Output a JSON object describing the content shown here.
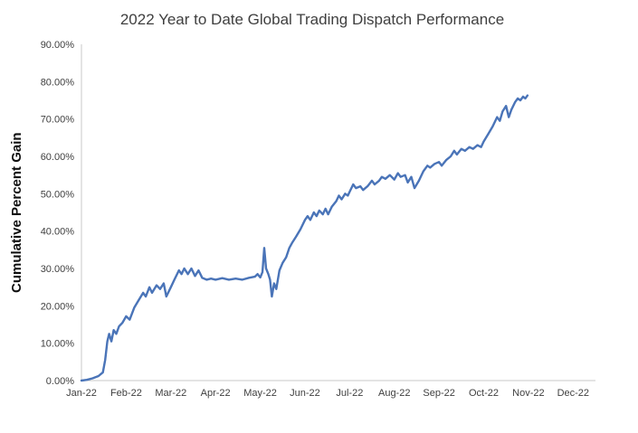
{
  "chart_data": {
    "type": "line",
    "title": "2022 Year to Date Global Trading Dispatch Performance",
    "xlabel": "",
    "ylabel": "Cumulative Percent Gain",
    "x_tick_labels": [
      "Jan-22",
      "Feb-22",
      "Mar-22",
      "Apr-22",
      "May-22",
      "Jun-22",
      "Jul-22",
      "Aug-22",
      "Sep-22",
      "Oct-22",
      "Nov-22",
      "Dec-22"
    ],
    "y_tick_labels": [
      "0.00%",
      "10.00%",
      "20.00%",
      "30.00%",
      "40.00%",
      "50.00%",
      "60.00%",
      "70.00%",
      "80.00%",
      "90.00%"
    ],
    "y_ticks": [
      0,
      10,
      20,
      30,
      40,
      50,
      60,
      70,
      80,
      90
    ],
    "ylim": [
      0,
      90
    ],
    "xlim": [
      0,
      11.5
    ],
    "x_unit": "months since Jan-22 tick (0 = Jan-22, 1 = Feb-22, ...)",
    "grid": false,
    "legend": "none",
    "line_color": "#4a74b8",
    "axis_color": "#c9c9c9",
    "text_color": "#404040",
    "series": [
      {
        "name": "Cumulative Percent Gain",
        "points": [
          [
            0,
            0
          ],
          [
            0.12,
            0.2
          ],
          [
            0.25,
            0.6
          ],
          [
            0.38,
            1.2
          ],
          [
            0.48,
            2.2
          ],
          [
            0.53,
            5.5
          ],
          [
            0.58,
            10.5
          ],
          [
            0.62,
            12.5
          ],
          [
            0.67,
            10.5
          ],
          [
            0.72,
            13.5
          ],
          [
            0.78,
            12.5
          ],
          [
            0.84,
            14.5
          ],
          [
            0.92,
            15.5
          ],
          [
            1.0,
            17.2
          ],
          [
            1.08,
            16.3
          ],
          [
            1.18,
            19.5
          ],
          [
            1.28,
            21.5
          ],
          [
            1.38,
            23.5
          ],
          [
            1.44,
            22.5
          ],
          [
            1.52,
            25
          ],
          [
            1.58,
            23.5
          ],
          [
            1.68,
            25.5
          ],
          [
            1.76,
            24.5
          ],
          [
            1.84,
            26
          ],
          [
            1.9,
            22.5
          ],
          [
            2.0,
            25
          ],
          [
            2.08,
            27
          ],
          [
            2.18,
            29.5
          ],
          [
            2.24,
            28.5
          ],
          [
            2.3,
            30
          ],
          [
            2.38,
            28.5
          ],
          [
            2.46,
            30
          ],
          [
            2.54,
            28
          ],
          [
            2.62,
            29.5
          ],
          [
            2.7,
            27.5
          ],
          [
            2.8,
            27
          ],
          [
            2.9,
            27.3
          ],
          [
            3.0,
            27
          ],
          [
            3.15,
            27.4
          ],
          [
            3.3,
            27
          ],
          [
            3.45,
            27.3
          ],
          [
            3.6,
            27
          ],
          [
            3.75,
            27.5
          ],
          [
            3.88,
            27.8
          ],
          [
            3.94,
            28.5
          ],
          [
            4.0,
            27.6
          ],
          [
            4.05,
            29
          ],
          [
            4.09,
            35.5
          ],
          [
            4.13,
            30
          ],
          [
            4.18,
            28.5
          ],
          [
            4.22,
            27
          ],
          [
            4.26,
            22.5
          ],
          [
            4.31,
            26
          ],
          [
            4.36,
            24.5
          ],
          [
            4.43,
            29.5
          ],
          [
            4.5,
            31.5
          ],
          [
            4.58,
            33
          ],
          [
            4.65,
            35.5
          ],
          [
            4.72,
            37
          ],
          [
            4.8,
            38.5
          ],
          [
            4.9,
            40.5
          ],
          [
            5.0,
            43
          ],
          [
            5.06,
            44
          ],
          [
            5.12,
            43
          ],
          [
            5.2,
            45
          ],
          [
            5.26,
            44
          ],
          [
            5.32,
            45.5
          ],
          [
            5.4,
            44.5
          ],
          [
            5.46,
            46
          ],
          [
            5.52,
            44.5
          ],
          [
            5.6,
            46.5
          ],
          [
            5.7,
            48
          ],
          [
            5.76,
            49.5
          ],
          [
            5.82,
            48.5
          ],
          [
            5.9,
            50
          ],
          [
            5.96,
            49.5
          ],
          [
            6.0,
            50.5
          ],
          [
            6.08,
            52.5
          ],
          [
            6.14,
            51.5
          ],
          [
            6.24,
            52
          ],
          [
            6.3,
            51
          ],
          [
            6.4,
            52
          ],
          [
            6.5,
            53.5
          ],
          [
            6.56,
            52.5
          ],
          [
            6.66,
            53.5
          ],
          [
            6.72,
            54.5
          ],
          [
            6.8,
            54
          ],
          [
            6.9,
            55
          ],
          [
            7.0,
            53.8
          ],
          [
            7.08,
            55.5
          ],
          [
            7.14,
            54.5
          ],
          [
            7.24,
            55
          ],
          [
            7.3,
            53
          ],
          [
            7.38,
            54.5
          ],
          [
            7.45,
            51.5
          ],
          [
            7.55,
            53.5
          ],
          [
            7.65,
            56
          ],
          [
            7.74,
            57.5
          ],
          [
            7.8,
            57
          ],
          [
            7.9,
            58
          ],
          [
            8.0,
            58.5
          ],
          [
            8.06,
            57.5
          ],
          [
            8.16,
            59
          ],
          [
            8.26,
            60
          ],
          [
            8.34,
            61.5
          ],
          [
            8.4,
            60.5
          ],
          [
            8.5,
            62
          ],
          [
            8.58,
            61.5
          ],
          [
            8.68,
            62.5
          ],
          [
            8.76,
            62
          ],
          [
            8.86,
            63
          ],
          [
            8.94,
            62.5
          ],
          [
            9.0,
            64
          ],
          [
            9.1,
            66
          ],
          [
            9.2,
            68
          ],
          [
            9.3,
            70.5
          ],
          [
            9.36,
            69.5
          ],
          [
            9.42,
            72
          ],
          [
            9.5,
            73.5
          ],
          [
            9.56,
            70.5
          ],
          [
            9.62,
            72.5
          ],
          [
            9.7,
            74.5
          ],
          [
            9.76,
            75.5
          ],
          [
            9.82,
            75
          ],
          [
            9.88,
            76
          ],
          [
            9.93,
            75.5
          ],
          [
            9.98,
            76.3
          ]
        ]
      }
    ]
  }
}
